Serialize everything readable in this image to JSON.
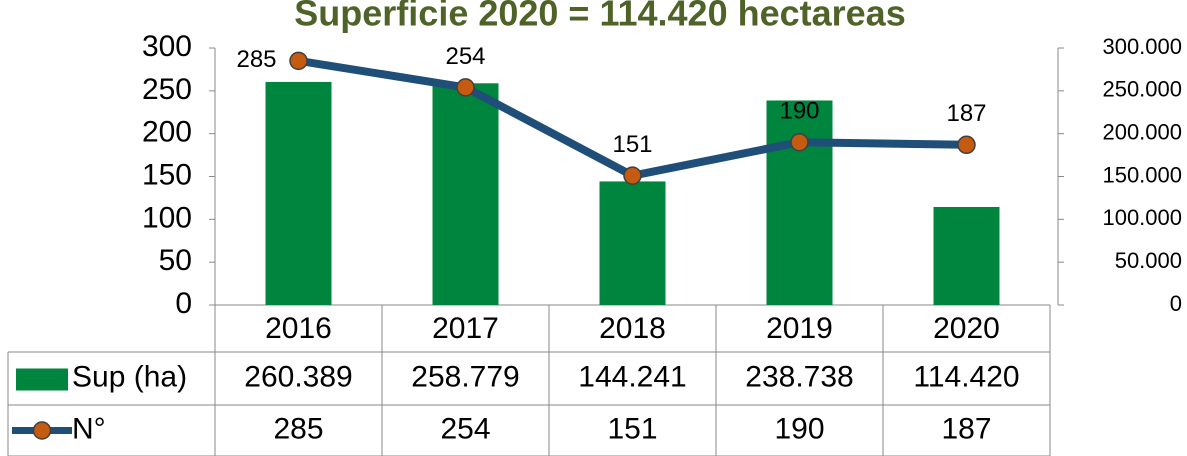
{
  "chart_data": {
    "type": "bar-line",
    "title": "Superficie  2020 = 114.420 hectareas",
    "categories": [
      "2016",
      "2017",
      "2018",
      "2019",
      "2020"
    ],
    "series": [
      {
        "name": "Sup (ha)",
        "type": "bar",
        "axis": "y2",
        "color": "#00853f",
        "values": [
          260389,
          258779,
          144241,
          238738,
          114420
        ],
        "value_labels": [
          "260.389",
          "258.779",
          "144.241",
          "238.738",
          "114.420"
        ]
      },
      {
        "name": "N°",
        "type": "line",
        "color": "#1f4e79",
        "marker_color": "#c55a11",
        "values": [
          285,
          254,
          151,
          190,
          187
        ]
      }
    ],
    "ylim": [
      0,
      300
    ],
    "yticks": [
      0,
      50,
      100,
      150,
      200,
      250,
      300
    ],
    "y2lim": [
      0,
      300000
    ],
    "y2ticks": [
      {
        "value": 0,
        "label": "0"
      },
      {
        "value": 50000,
        "label": "50.000"
      },
      {
        "value": 100000,
        "label": "100.000"
      },
      {
        "value": 150000,
        "label": "150.000"
      },
      {
        "value": 200000,
        "label": "200.000"
      },
      {
        "value": 250000,
        "label": "250.000"
      },
      {
        "value": 300000,
        "label": "300.000"
      }
    ],
    "data_table": true
  }
}
